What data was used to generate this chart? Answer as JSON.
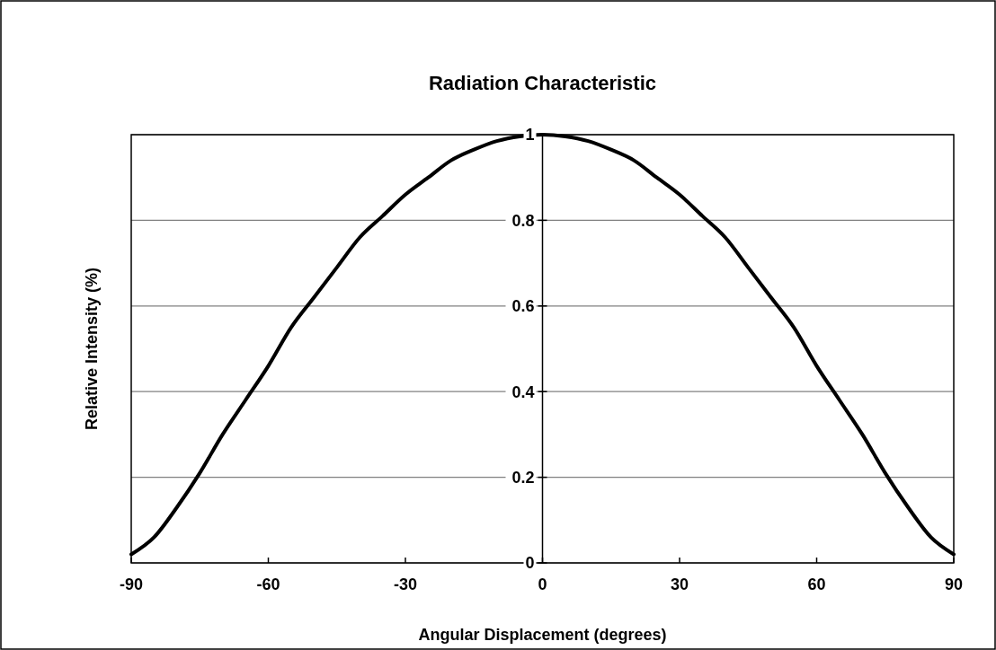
{
  "chart_data": {
    "type": "line",
    "title": "Radiation Characteristic",
    "xlabel": "Angular Displacement (degrees)",
    "ylabel": "Relative Intensity (%)",
    "x": [
      -90,
      -85,
      -80,
      -75,
      -70,
      -65,
      -60,
      -55,
      -50,
      -45,
      -40,
      -35,
      -30,
      -25,
      -20,
      -15,
      -10,
      -5,
      0,
      5,
      10,
      15,
      20,
      25,
      30,
      35,
      40,
      45,
      50,
      55,
      60,
      65,
      70,
      75,
      80,
      85,
      90
    ],
    "series": [
      {
        "color": "#000000",
        "values": [
          0.02,
          0.06,
          0.13,
          0.21,
          0.3,
          0.38,
          0.46,
          0.55,
          0.62,
          0.69,
          0.76,
          0.81,
          0.86,
          0.9,
          0.94,
          0.965,
          0.985,
          0.996,
          1,
          0.996,
          0.985,
          0.965,
          0.94,
          0.9,
          0.86,
          0.81,
          0.76,
          0.69,
          0.62,
          0.55,
          0.46,
          0.38,
          0.3,
          0.21,
          0.13,
          0.06,
          0.02
        ]
      }
    ],
    "xlim": [
      -90,
      90
    ],
    "xticks": [
      -90,
      -60,
      -30,
      0,
      30,
      60,
      90
    ],
    "ylim": [
      0,
      1
    ],
    "yticks": [
      0,
      0.2,
      0.4,
      0.6,
      0.8,
      1
    ],
    "grid": "y",
    "marker": "none",
    "line_style": "solid"
  }
}
